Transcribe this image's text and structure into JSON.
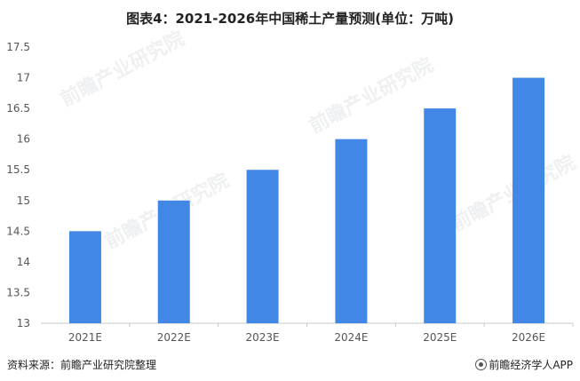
{
  "title": "图表4：2021-2026年中国稀土产量预测(单位：万吨)",
  "source": "资料来源：前瞻产业研究院整理",
  "brand": "前瞻经济学人APP",
  "watermark": "前瞻产业研究院",
  "colors": {
    "bar": "#4287e6",
    "axis": "#c8c8c8",
    "text": "#555555"
  },
  "chart_data": {
    "type": "bar",
    "categories": [
      "2021E",
      "2022E",
      "2023E",
      "2024E",
      "2025E",
      "2026E"
    ],
    "values": [
      14.5,
      15,
      15.5,
      16,
      16.5,
      17
    ],
    "ylim": [
      13,
      17.5
    ],
    "yticks": [
      "13",
      "13.5",
      "14",
      "14.5",
      "15",
      "15.5",
      "16",
      "16.5",
      "17",
      "17.5"
    ],
    "grid": false,
    "xlabel": "",
    "ylabel": ""
  }
}
